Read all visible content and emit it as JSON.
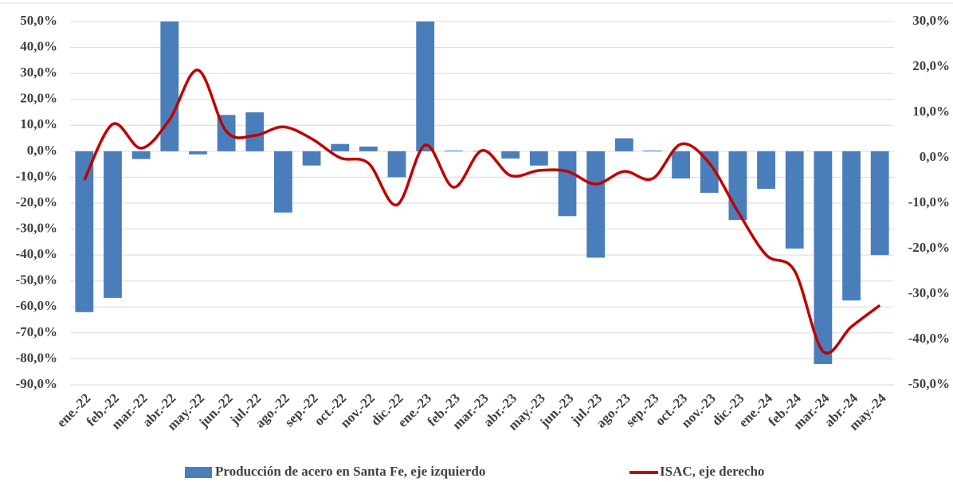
{
  "chart_data": {
    "type": "bar_line",
    "categories": [
      "ene.-22",
      "feb.-22",
      "mar.-22",
      "abr.-22",
      "may.-22",
      "jun.-22",
      "jul.-22",
      "ago.-22",
      "sep.-22",
      "oct.-22",
      "nov.-22",
      "dic.-22",
      "ene.-23",
      "feb.-23",
      "mar.-23",
      "abr.-23",
      "may.-23",
      "jun.-23",
      "jul.-23",
      "ago.-23",
      "sep.-23",
      "oct.-23",
      "nov.-23",
      "dic.-23",
      "ene.-24",
      "feb.-24",
      "mar.-24",
      "abr.-24",
      "may.-24"
    ],
    "series": [
      {
        "name": "Producción de acero en Santa Fe, eje izquierdo",
        "type": "bar",
        "color": "#4a7ebb",
        "values": [
          -62,
          -56.5,
          -3,
          50,
          -1.2,
          14,
          15,
          -23.6,
          -5.5,
          2.8,
          1.8,
          -10,
          50,
          0.3,
          0.2,
          -2.8,
          -5.5,
          -25,
          -41,
          5,
          0.3,
          -10.5,
          -16,
          -26.5,
          -14.5,
          -37.5,
          -82,
          -57.5,
          -40
        ]
      },
      {
        "name": "ISAC, eje derecho",
        "type": "line",
        "axis": "y2",
        "color": "#c00000",
        "values": [
          -4.9,
          7.4,
          2.1,
          8.4,
          19.3,
          5.8,
          4.9,
          6.8,
          4.2,
          0,
          -1.2,
          -10.4,
          2.8,
          -6.5,
          1.6,
          -3.9,
          -2.8,
          -3,
          -5.8,
          -3,
          -4.6,
          3,
          -1.2,
          -11.8,
          -21.4,
          -24.9,
          -42.6,
          -37.2,
          -32.5
        ]
      }
    ],
    "ylim": [
      -90,
      50
    ],
    "yticks": [
      {
        "value": 50,
        "label": "50,0%"
      },
      {
        "value": 40,
        "label": "40,0%"
      },
      {
        "value": 30,
        "label": "30,0%"
      },
      {
        "value": 20,
        "label": "20,0%"
      },
      {
        "value": 10,
        "label": "10,0%"
      },
      {
        "value": 0,
        "label": "0,0%"
      },
      {
        "value": -10,
        "label": "-10,0%"
      },
      {
        "value": -20,
        "label": "-20,0%"
      },
      {
        "value": -30,
        "label": "-30,0%"
      },
      {
        "value": -40,
        "label": "-40,0%"
      },
      {
        "value": -50,
        "label": "-50,0%"
      },
      {
        "value": -60,
        "label": "-60,0%"
      },
      {
        "value": -70,
        "label": "-70,0%"
      },
      {
        "value": -80,
        "label": "-80,0%"
      },
      {
        "value": -90,
        "label": "-90,0%"
      }
    ],
    "y2lim": [
      -50,
      30
    ],
    "y2ticks": [
      {
        "value": 30,
        "label": "30,0%"
      },
      {
        "value": 20,
        "label": "20,0%"
      },
      {
        "value": 10,
        "label": "10,0%"
      },
      {
        "value": 0,
        "label": "0,0%"
      },
      {
        "value": -10,
        "label": "-10,0%"
      },
      {
        "value": -20,
        "label": "-20,0%"
      },
      {
        "value": -30,
        "label": "-30,0%"
      },
      {
        "value": -40,
        "label": "-40,0%"
      },
      {
        "value": -50,
        "label": "-50,0%"
      }
    ],
    "grid": true,
    "legend": "bottom"
  }
}
